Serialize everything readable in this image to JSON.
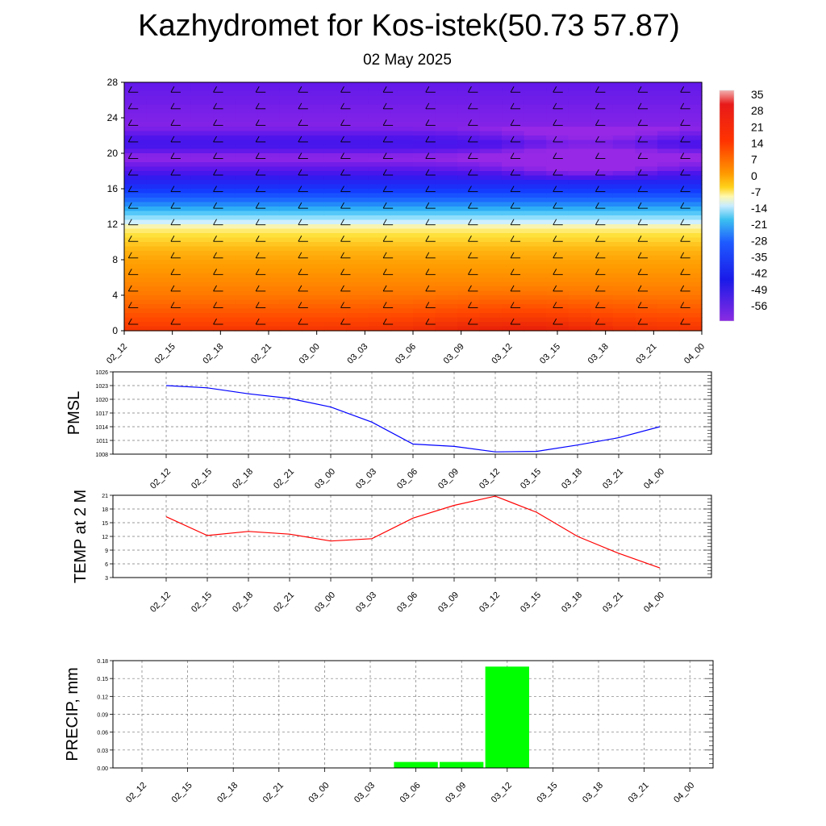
{
  "title": "Kazhydromet for Kos-istek(50.73 57.87)",
  "subtitle": "02 May 2025",
  "time_labels": [
    "02_12",
    "02_15",
    "02_18",
    "02_21",
    "03_00",
    "03_03",
    "03_06",
    "03_09",
    "03_12",
    "03_15",
    "03_18",
    "03_21",
    "04_00"
  ],
  "chart_data": [
    {
      "type": "heatmap",
      "name_hint": "temperature cross-section",
      "x": [
        "02_12",
        "02_15",
        "02_18",
        "02_21",
        "03_00",
        "03_03",
        "03_06",
        "03_09",
        "03_12",
        "03_15",
        "03_18",
        "03_21",
        "04_00"
      ],
      "ylim": [
        0,
        28
      ],
      "yticks": [
        0,
        4,
        8,
        12,
        16,
        20,
        24,
        28
      ],
      "colorbar_labels": [
        "35",
        "28",
        "21",
        "14",
        "7",
        "0",
        "-7",
        "-14",
        "-21",
        "-28",
        "-35",
        "-42",
        "-49",
        "-56"
      ],
      "colorbar_range": [
        -60,
        38
      ],
      "profile_by_height": [
        {
          "h": 0,
          "v": 24
        },
        {
          "h": 4,
          "v": 14
        },
        {
          "h": 8,
          "v": 5
        },
        {
          "h": 11.5,
          "v": -9
        },
        {
          "h": 12.5,
          "v": -16
        },
        {
          "h": 14.5,
          "v": -34
        },
        {
          "h": 16.5,
          "v": -47
        },
        {
          "h": 18,
          "v": -56
        },
        {
          "h": 19.5,
          "v": -60
        },
        {
          "h": 21,
          "v": -54
        },
        {
          "h": 23,
          "v": -59
        },
        {
          "h": 28,
          "v": -57
        }
      ]
    },
    {
      "type": "line",
      "ylabel": "PMSL",
      "x": [
        "02_12",
        "02_15",
        "02_18",
        "02_21",
        "03_00",
        "03_03",
        "03_06",
        "03_09",
        "03_12",
        "03_15",
        "03_18",
        "03_21",
        "04_00"
      ],
      "ylim": [
        1008,
        1026
      ],
      "yticks": [
        1008,
        1011,
        1014,
        1017,
        1020,
        1023,
        1026
      ],
      "color": "#0000ff",
      "series": [
        {
          "values": [
            1023.0,
            1022.5,
            1021.2,
            1020.2,
            1018.3,
            1015.0,
            1010.2,
            1009.7,
            1008.5,
            1008.6,
            1010.0,
            1011.6,
            1014.0
          ]
        }
      ]
    },
    {
      "type": "line",
      "ylabel": "TEMP at 2 M",
      "x": [
        "02_12",
        "02_15",
        "02_18",
        "02_21",
        "03_00",
        "03_03",
        "03_06",
        "03_09",
        "03_12",
        "03_15",
        "03_18",
        "03_21",
        "04_00"
      ],
      "ylim": [
        3,
        21
      ],
      "yticks": [
        3,
        6,
        9,
        12,
        15,
        18,
        21
      ],
      "color": "#ff0000",
      "series": [
        {
          "values": [
            16.3,
            12.2,
            13.1,
            12.5,
            11.0,
            11.5,
            16.0,
            18.8,
            20.8,
            17.3,
            12.0,
            8.3,
            5.1
          ]
        }
      ]
    },
    {
      "type": "bar",
      "ylabel": "PRECIP, mm",
      "categories": [
        "02_12",
        "02_15",
        "02_18",
        "02_21",
        "03_00",
        "03_03",
        "03_06",
        "03_09",
        "03_12",
        "03_15",
        "03_18",
        "03_21",
        "04_00"
      ],
      "ylim": [
        0,
        0.18
      ],
      "yticks": [
        "0.00",
        "0.03",
        "0.06",
        "0.09",
        "0.12",
        "0.15",
        "0.18"
      ],
      "color": "#00ff00",
      "values": [
        0,
        0,
        0,
        0,
        0,
        0,
        0.01,
        0.01,
        0.17,
        0,
        0,
        0,
        0
      ]
    }
  ]
}
